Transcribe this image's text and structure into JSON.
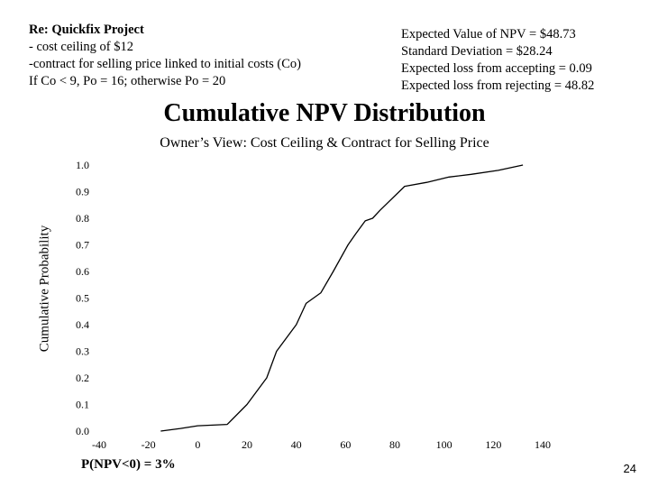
{
  "notes_left": {
    "title": "Re: Quickfix Project",
    "lines": [
      "- cost ceiling of $12",
      "-contract for selling price linked to initial costs (Co)",
      "If Co < 9, Po = 16; otherwise Po = 20"
    ]
  },
  "notes_right": {
    "lines": [
      "Expected Value of NPV = $48.73",
      "Standard Deviation = $28.24",
      "Expected  loss from accepting = 0.09",
      "Expected loss from rejecting = 48.82"
    ]
  },
  "footnote": "P(NPV<0) = 3%",
  "page_number": "24",
  "colors": {
    "line": "#000000",
    "background": "#ffffff"
  },
  "chart_data": {
    "type": "line",
    "title": "Cumulative NPV Distribution",
    "subtitle": "Owner’s View:  Cost Ceiling & Contract for Selling Price",
    "xlabel": "",
    "ylabel": "Cumulative Probability",
    "xlim": [
      -40,
      140
    ],
    "ylim": [
      0,
      1.0
    ],
    "x_ticks": [
      -40,
      -20,
      0,
      20,
      40,
      60,
      80,
      100,
      120,
      140
    ],
    "y_ticks": [
      "0.0",
      "0.1",
      "0.2",
      "0.3",
      "0.4",
      "0.5",
      "0.6",
      "0.7",
      "0.8",
      "0.9",
      "1.0"
    ],
    "grid": false,
    "series": [
      {
        "x": [
          -15,
          -7,
          0,
          12,
          20,
          28,
          32,
          40,
          44,
          50,
          55,
          61,
          64,
          68,
          71,
          74,
          84,
          93,
          102,
          111,
          122,
          132
        ],
        "y": [
          0.0,
          0.01,
          0.02,
          0.025,
          0.1,
          0.2,
          0.3,
          0.4,
          0.48,
          0.52,
          0.6,
          0.7,
          0.74,
          0.79,
          0.8,
          0.83,
          0.92,
          0.935,
          0.955,
          0.965,
          0.98,
          1.0
        ]
      }
    ]
  }
}
